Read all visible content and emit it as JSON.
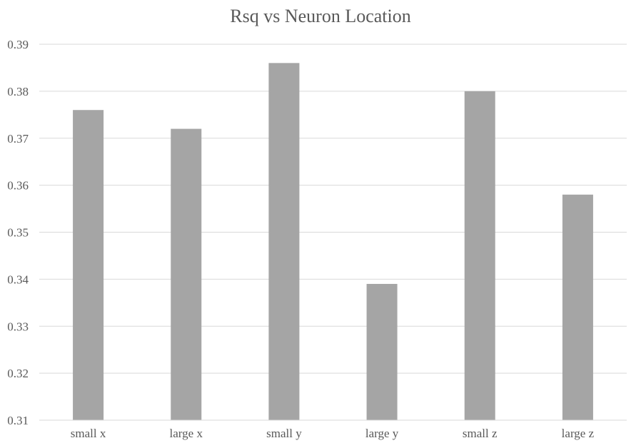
{
  "chart_data": {
    "type": "bar",
    "title": "Rsq vs Neuron Location",
    "xlabel": "",
    "ylabel": "",
    "categories": [
      "small x",
      "large x",
      "small y",
      "large y",
      "small z",
      "large z"
    ],
    "values": [
      0.376,
      0.372,
      0.386,
      0.339,
      0.38,
      0.358
    ],
    "ylim": [
      0.31,
      0.39
    ],
    "yticks": [
      "0.31",
      "0.32",
      "0.33",
      "0.34",
      "0.35",
      "0.36",
      "0.37",
      "0.38",
      "0.39"
    ],
    "grid": true,
    "legend": "none",
    "bar_color": "#a5a5a5"
  }
}
